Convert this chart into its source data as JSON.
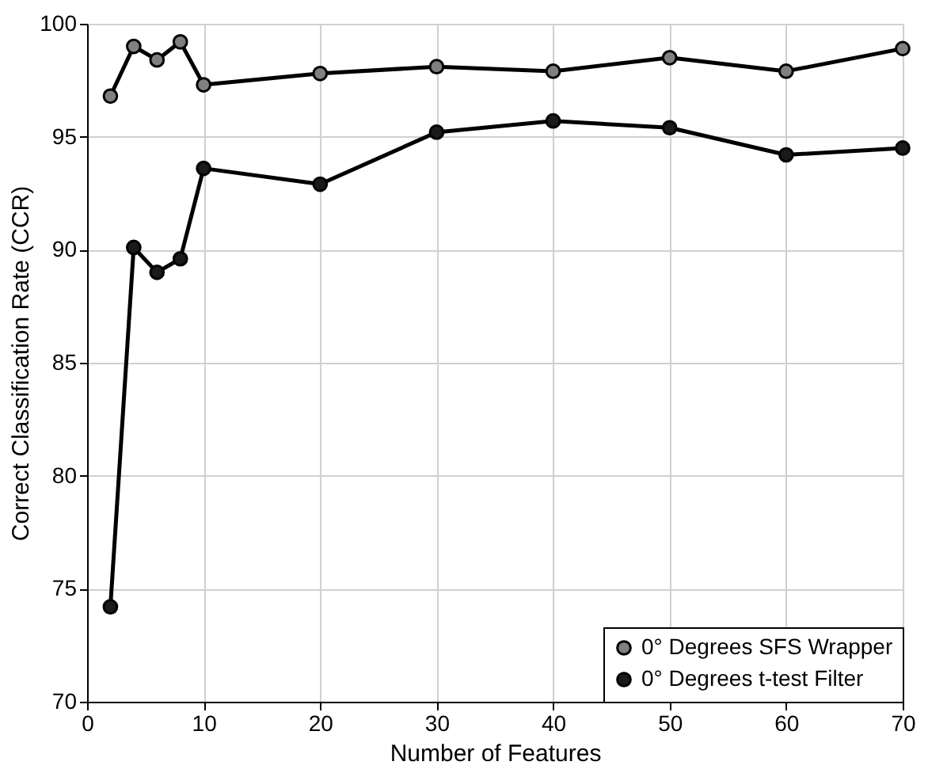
{
  "chart_data": {
    "type": "line",
    "xlabel": "Number of Features",
    "ylabel": "Correct Classification Rate (CCR)",
    "x": [
      2,
      4,
      6,
      8,
      10,
      20,
      30,
      40,
      50,
      60,
      70
    ],
    "series": [
      {
        "name": "0° Degrees SFS Wrapper",
        "color": "#808080",
        "values": [
          96.8,
          99.0,
          98.4,
          99.2,
          97.3,
          97.8,
          98.1,
          97.9,
          98.5,
          97.9,
          98.9
        ]
      },
      {
        "name": "0° Degrees t-test Filter",
        "color": "#1a1a1a",
        "values": [
          74.2,
          90.1,
          89.0,
          89.6,
          93.6,
          92.9,
          95.2,
          95.7,
          95.4,
          94.2,
          94.5
        ]
      }
    ],
    "xlim": [
      0,
      70
    ],
    "xticks": [
      0,
      10,
      20,
      30,
      40,
      50,
      60,
      70
    ],
    "ylim": [
      70,
      100
    ],
    "yticks": [
      70,
      75,
      80,
      85,
      90,
      95,
      100
    ],
    "grid": true,
    "legend": "bottom right",
    "marker": "circle",
    "line_style": "solid"
  }
}
